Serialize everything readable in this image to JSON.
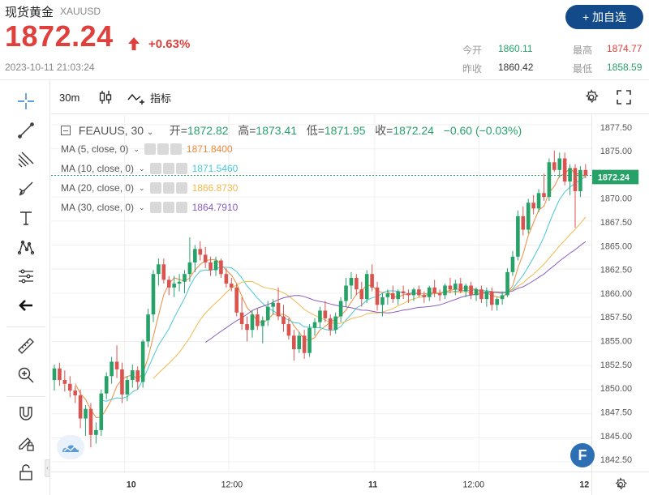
{
  "header": {
    "title": "现货黄金",
    "symbol": "XAUUSD",
    "price": "1872.24",
    "change_pct": "+0.63%",
    "timestamp": "2023-10-11 21:03:24",
    "add_button": "+ 加自选",
    "stats": [
      {
        "label": "今开",
        "value": "1860.11",
        "color": "#26a269"
      },
      {
        "label": "最高",
        "value": "1874.77",
        "color": "#e0403c"
      },
      {
        "label": "昨收",
        "value": "1860.42",
        "color": "#333333"
      },
      {
        "label": "最低",
        "value": "1858.59",
        "color": "#26a269"
      }
    ]
  },
  "toolbar": {
    "interval": "30m",
    "indicators": "指标"
  },
  "legend": {
    "series": "FEAUUS, 30",
    "open_lbl": "开=",
    "open": "1872.82",
    "high_lbl": "高=",
    "high": "1873.41",
    "low_lbl": "低=",
    "low": "1871.95",
    "close_lbl": "收=",
    "close": "1872.24",
    "change": "−0.60 (−0.03%)"
  },
  "ma": [
    {
      "label": "MA (5, close, 0)",
      "value": "1871.8400",
      "color": "#f08a3c"
    },
    {
      "label": "MA (10, close, 0)",
      "value": "1871.5460",
      "color": "#48c7d6"
    },
    {
      "label": "MA (20, close, 0)",
      "value": "1866.8730",
      "color": "#f2b84b"
    },
    {
      "label": "MA (30, close, 0)",
      "value": "1864.7910",
      "color": "#8a5cc0"
    }
  ],
  "colors": {
    "up": "#26a269",
    "down": "#d9534f",
    "accent": "#124a8a"
  },
  "chart_data": {
    "type": "candlestick",
    "last_price_label": "1872.24",
    "ylim": [
      1841.5,
      1878.5
    ],
    "y_ticks": [
      "1877.50",
      "1875.00",
      "1872.50",
      "1870.00",
      "1867.50",
      "1865.00",
      "1862.50",
      "1860.00",
      "1857.50",
      "1855.00",
      "1852.50",
      "1850.00",
      "1847.50",
      "1845.00",
      "1842.50"
    ],
    "x_ticks": [
      {
        "label": "10",
        "bar": 13.5,
        "bold": true
      },
      {
        "label": "12:00",
        "bar": 33.5,
        "bold": false
      },
      {
        "label": "11",
        "bar": 61.5,
        "bold": true
      },
      {
        "label": "12:00",
        "bar": 81.5,
        "bold": false
      },
      {
        "label": "12",
        "bar": 103.5,
        "bold": true
      }
    ],
    "candles": [
      [
        1851.0,
        1852.6,
        1849.9,
        1852.2
      ],
      [
        1852.2,
        1852.8,
        1850.4,
        1851.0
      ],
      [
        1851.0,
        1852.0,
        1849.8,
        1850.6
      ],
      [
        1850.6,
        1851.4,
        1849.2,
        1849.9
      ],
      [
        1849.9,
        1850.4,
        1848.6,
        1849.4
      ],
      [
        1849.4,
        1850.0,
        1846.0,
        1847.0
      ],
      [
        1847.0,
        1848.4,
        1845.2,
        1848.0
      ],
      [
        1848.0,
        1848.6,
        1844.0,
        1845.3
      ],
      [
        1845.3,
        1846.6,
        1844.4,
        1845.8
      ],
      [
        1845.8,
        1850.0,
        1845.2,
        1849.6
      ],
      [
        1849.6,
        1851.8,
        1849.0,
        1851.4
      ],
      [
        1851.4,
        1853.4,
        1850.6,
        1852.9
      ],
      [
        1852.9,
        1854.6,
        1851.2,
        1852.1
      ],
      [
        1852.1,
        1852.8,
        1848.6,
        1849.5
      ],
      [
        1849.5,
        1851.4,
        1848.8,
        1851.0
      ],
      [
        1851.0,
        1852.6,
        1850.2,
        1852.0
      ],
      [
        1852.0,
        1852.4,
        1850.0,
        1850.8
      ],
      [
        1850.8,
        1855.2,
        1850.2,
        1855.0
      ],
      [
        1855.0,
        1858.4,
        1854.4,
        1857.8
      ],
      [
        1857.8,
        1862.4,
        1857.0,
        1862.0
      ],
      [
        1862.0,
        1863.6,
        1860.8,
        1863.0
      ],
      [
        1863.0,
        1863.6,
        1861.0,
        1861.4
      ],
      [
        1861.4,
        1861.8,
        1859.8,
        1860.6
      ],
      [
        1860.6,
        1861.8,
        1859.6,
        1861.0
      ],
      [
        1861.0,
        1862.0,
        1860.2,
        1861.2
      ],
      [
        1861.2,
        1862.4,
        1860.0,
        1862.0
      ],
      [
        1862.0,
        1865.8,
        1861.2,
        1863.2
      ],
      [
        1863.2,
        1865.0,
        1862.2,
        1864.6
      ],
      [
        1864.6,
        1865.4,
        1863.4,
        1864.0
      ],
      [
        1864.0,
        1864.8,
        1862.6,
        1863.2
      ],
      [
        1863.2,
        1863.8,
        1861.8,
        1862.4
      ],
      [
        1862.4,
        1863.8,
        1861.8,
        1863.4
      ],
      [
        1863.4,
        1863.6,
        1861.6,
        1862.0
      ],
      [
        1862.0,
        1862.6,
        1860.6,
        1861.0
      ],
      [
        1861.0,
        1861.6,
        1860.2,
        1860.6
      ],
      [
        1860.6,
        1861.0,
        1857.6,
        1858.0
      ],
      [
        1858.0,
        1859.6,
        1856.2,
        1856.8
      ],
      [
        1856.8,
        1857.6,
        1855.0,
        1856.2
      ],
      [
        1856.2,
        1858.2,
        1855.4,
        1857.8
      ],
      [
        1857.8,
        1858.4,
        1856.2,
        1856.6
      ],
      [
        1856.6,
        1857.6,
        1854.8,
        1857.2
      ],
      [
        1857.2,
        1859.2,
        1856.6,
        1858.6
      ],
      [
        1858.6,
        1859.4,
        1857.8,
        1859.0
      ],
      [
        1859.0,
        1860.6,
        1857.2,
        1857.6
      ],
      [
        1857.6,
        1858.8,
        1856.0,
        1856.8
      ],
      [
        1856.8,
        1857.4,
        1855.2,
        1855.6
      ],
      [
        1855.6,
        1856.2,
        1853.0,
        1854.2
      ],
      [
        1854.2,
        1856.0,
        1853.8,
        1855.6
      ],
      [
        1855.6,
        1856.2,
        1853.2,
        1853.8
      ],
      [
        1853.8,
        1856.8,
        1853.4,
        1856.4
      ],
      [
        1856.4,
        1857.4,
        1855.6,
        1857.0
      ],
      [
        1857.0,
        1858.6,
        1856.4,
        1858.2
      ],
      [
        1858.2,
        1859.2,
        1857.0,
        1857.4
      ],
      [
        1857.4,
        1857.8,
        1855.6,
        1856.2
      ],
      [
        1856.2,
        1858.0,
        1855.8,
        1857.6
      ],
      [
        1857.6,
        1859.6,
        1857.0,
        1859.2
      ],
      [
        1859.2,
        1861.6,
        1858.6,
        1860.8
      ],
      [
        1860.8,
        1862.2,
        1859.4,
        1861.6
      ],
      [
        1861.6,
        1862.0,
        1859.8,
        1860.4
      ],
      [
        1860.4,
        1861.2,
        1858.6,
        1859.4
      ],
      [
        1859.4,
        1862.4,
        1859.0,
        1862.0
      ],
      [
        1862.0,
        1863.0,
        1860.2,
        1860.6
      ],
      [
        1860.6,
        1861.2,
        1858.2,
        1858.8
      ],
      [
        1858.8,
        1860.0,
        1857.6,
        1859.6
      ],
      [
        1859.6,
        1860.4,
        1858.8,
        1860.0
      ],
      [
        1860.0,
        1860.8,
        1859.0,
        1859.4
      ],
      [
        1859.4,
        1860.4,
        1858.8,
        1860.2
      ],
      [
        1860.2,
        1860.8,
        1859.4,
        1860.0
      ],
      [
        1860.0,
        1860.4,
        1859.0,
        1859.8
      ],
      [
        1859.8,
        1860.6,
        1859.2,
        1860.4
      ],
      [
        1860.4,
        1860.8,
        1859.6,
        1859.8
      ],
      [
        1859.8,
        1860.2,
        1859.0,
        1859.6
      ],
      [
        1859.6,
        1860.8,
        1859.2,
        1860.6
      ],
      [
        1860.6,
        1861.4,
        1859.6,
        1860.0
      ],
      [
        1860.0,
        1860.4,
        1859.2,
        1859.8
      ],
      [
        1859.8,
        1861.0,
        1859.4,
        1860.8
      ],
      [
        1860.8,
        1861.6,
        1860.0,
        1860.4
      ],
      [
        1860.4,
        1861.4,
        1859.8,
        1861.0
      ],
      [
        1861.0,
        1861.6,
        1860.0,
        1860.2
      ],
      [
        1860.2,
        1861.0,
        1859.6,
        1860.8
      ],
      [
        1860.8,
        1861.2,
        1859.4,
        1859.8
      ],
      [
        1859.8,
        1860.6,
        1859.2,
        1860.4
      ],
      [
        1860.4,
        1860.8,
        1859.0,
        1859.4
      ],
      [
        1859.4,
        1860.6,
        1858.6,
        1860.2
      ],
      [
        1860.2,
        1860.6,
        1858.2,
        1858.8
      ],
      [
        1858.8,
        1859.6,
        1858.2,
        1859.4
      ],
      [
        1859.4,
        1860.2,
        1858.8,
        1859.8
      ],
      [
        1859.8,
        1862.6,
        1859.6,
        1862.2
      ],
      [
        1862.2,
        1864.4,
        1861.8,
        1863.8
      ],
      [
        1863.8,
        1868.6,
        1863.4,
        1868.0
      ],
      [
        1868.0,
        1869.0,
        1866.0,
        1866.6
      ],
      [
        1866.6,
        1869.8,
        1866.2,
        1869.4
      ],
      [
        1869.4,
        1870.2,
        1868.2,
        1868.8
      ],
      [
        1868.8,
        1870.8,
        1868.4,
        1870.4
      ],
      [
        1870.4,
        1872.4,
        1869.6,
        1870.0
      ],
      [
        1870.0,
        1874.0,
        1869.6,
        1873.6
      ],
      [
        1873.6,
        1874.8,
        1872.6,
        1872.8
      ],
      [
        1872.8,
        1874.6,
        1872.0,
        1874.0
      ],
      [
        1874.0,
        1874.6,
        1871.2,
        1871.6
      ],
      [
        1871.6,
        1873.4,
        1870.2,
        1873.0
      ],
      [
        1873.0,
        1873.4,
        1866.8,
        1870.6
      ],
      [
        1870.6,
        1873.2,
        1870.0,
        1872.8
      ],
      [
        1872.8,
        1873.41,
        1871.95,
        1872.24
      ]
    ],
    "ma_periods": [
      5,
      10,
      20,
      30
    ]
  }
}
